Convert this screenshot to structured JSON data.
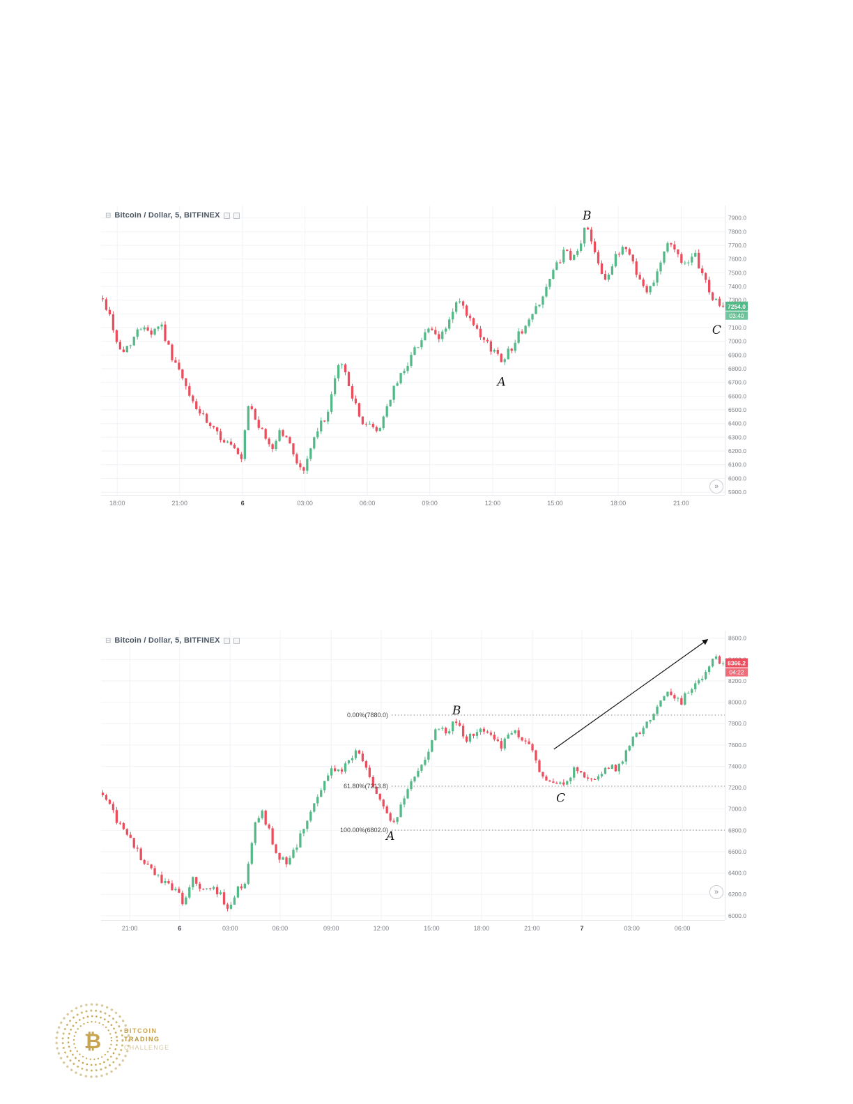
{
  "ui": {
    "collapse_glyph": "⊟",
    "scroll_glyph": "»"
  },
  "colors": {
    "up": "#53b987",
    "down": "#eb4d5c",
    "grid": "#f0f2f5",
    "axis_border": "#e4e6ea",
    "axis_text": "#7d8086",
    "title_text": "#4a5562",
    "fib_line": "#8a8a8a",
    "fib_text": "#3f3f3f",
    "annotation": "#161616",
    "arrow": "#111111",
    "logo_gold": "#c8a551",
    "logo_gold_light": "#d9c99b"
  },
  "chart_data": [
    {
      "type": "candlestick",
      "title": "Bitcoin / Dollar, 5, BITFINEX",
      "last_price": "7254.0",
      "last_value": 7254,
      "countdown": "03:40",
      "direction": "up",
      "price_axis": {
        "min": 5880,
        "max": 7990,
        "ticks": [
          7900,
          7800,
          7700,
          7600,
          7500,
          7400,
          7300,
          7200,
          7100,
          7000,
          6900,
          6800,
          6700,
          6600,
          6500,
          6400,
          6300,
          6200,
          6100,
          6000,
          5900
        ]
      },
      "time_axis": [
        {
          "t": 0.026,
          "label": "18:00"
        },
        {
          "t": 0.126,
          "label": "21:00"
        },
        {
          "t": 0.227,
          "label": "6",
          "bold": true
        },
        {
          "t": 0.327,
          "label": "03:00"
        },
        {
          "t": 0.427,
          "label": "06:00"
        },
        {
          "t": 0.527,
          "label": "09:00"
        },
        {
          "t": 0.628,
          "label": "12:00"
        },
        {
          "t": 0.728,
          "label": "15:00"
        },
        {
          "t": 0.829,
          "label": "18:00"
        },
        {
          "t": 0.93,
          "label": "21:00"
        }
      ],
      "anchors": [
        [
          0.0,
          7310
        ],
        [
          0.012,
          7180
        ],
        [
          0.02,
          7040
        ],
        [
          0.03,
          6900
        ],
        [
          0.045,
          7000
        ],
        [
          0.06,
          7090
        ],
        [
          0.067,
          7130
        ],
        [
          0.078,
          7060
        ],
        [
          0.093,
          7140
        ],
        [
          0.106,
          6950
        ],
        [
          0.123,
          6780
        ],
        [
          0.137,
          6620
        ],
        [
          0.153,
          6500
        ],
        [
          0.171,
          6380
        ],
        [
          0.19,
          6300
        ],
        [
          0.209,
          6230
        ],
        [
          0.223,
          6110
        ],
        [
          0.235,
          6540
        ],
        [
          0.246,
          6440
        ],
        [
          0.26,
          6300
        ],
        [
          0.274,
          6220
        ],
        [
          0.285,
          6350
        ],
        [
          0.298,
          6280
        ],
        [
          0.309,
          6170
        ],
        [
          0.322,
          6030
        ],
        [
          0.335,
          6220
        ],
        [
          0.352,
          6400
        ],
        [
          0.365,
          6500
        ],
        [
          0.381,
          6860
        ],
        [
          0.39,
          6780
        ],
        [
          0.397,
          6690
        ],
        [
          0.413,
          6440
        ],
        [
          0.43,
          6380
        ],
        [
          0.444,
          6340
        ],
        [
          0.464,
          6600
        ],
        [
          0.486,
          6800
        ],
        [
          0.508,
          6980
        ],
        [
          0.525,
          7100
        ],
        [
          0.54,
          7000
        ],
        [
          0.555,
          7120
        ],
        [
          0.573,
          7300
        ],
        [
          0.592,
          7150
        ],
        [
          0.609,
          7020
        ],
        [
          0.626,
          6950
        ],
        [
          0.644,
          6870
        ],
        [
          0.658,
          6950
        ],
        [
          0.672,
          7060
        ],
        [
          0.688,
          7150
        ],
        [
          0.7,
          7260
        ],
        [
          0.716,
          7400
        ],
        [
          0.732,
          7560
        ],
        [
          0.745,
          7660
        ],
        [
          0.754,
          7590
        ],
        [
          0.764,
          7630
        ],
        [
          0.779,
          7850
        ],
        [
          0.79,
          7710
        ],
        [
          0.806,
          7490
        ],
        [
          0.813,
          7460
        ],
        [
          0.828,
          7620
        ],
        [
          0.839,
          7700
        ],
        [
          0.851,
          7630
        ],
        [
          0.866,
          7440
        ],
        [
          0.878,
          7350
        ],
        [
          0.894,
          7520
        ],
        [
          0.91,
          7720
        ],
        [
          0.927,
          7640
        ],
        [
          0.942,
          7540
        ],
        [
          0.955,
          7620
        ],
        [
          0.969,
          7470
        ],
        [
          0.98,
          7330
        ],
        [
          1.0,
          7254
        ]
      ],
      "annotations": [
        {
          "text": "B",
          "t": 0.779,
          "price": 7915
        },
        {
          "text": "A",
          "t": 0.642,
          "price": 6700
        },
        {
          "text": "C",
          "t": 0.987,
          "price": 7080
        }
      ]
    },
    {
      "type": "candlestick",
      "title": "Bitcoin / Dollar, 5, BITFINEX",
      "last_price": "8366.2",
      "last_value": 8366,
      "countdown": "04:22",
      "direction": "down",
      "price_axis": {
        "min": 5960,
        "max": 8670,
        "ticks": [
          8600,
          8400,
          8200,
          8000,
          7800,
          7600,
          7400,
          7200,
          7000,
          6800,
          6600,
          6400,
          6200,
          6000
        ]
      },
      "time_axis": [
        {
          "t": 0.046,
          "label": "21:00"
        },
        {
          "t": 0.126,
          "label": "6",
          "bold": true
        },
        {
          "t": 0.207,
          "label": "03:00"
        },
        {
          "t": 0.287,
          "label": "06:00"
        },
        {
          "t": 0.369,
          "label": "09:00"
        },
        {
          "t": 0.449,
          "label": "12:00"
        },
        {
          "t": 0.53,
          "label": "15:00"
        },
        {
          "t": 0.61,
          "label": "18:00"
        },
        {
          "t": 0.691,
          "label": "21:00"
        },
        {
          "t": 0.771,
          "label": "7",
          "bold": true
        },
        {
          "t": 0.851,
          "label": "03:00"
        },
        {
          "t": 0.932,
          "label": "06:00"
        }
      ],
      "anchors": [
        [
          0.0,
          7150
        ],
        [
          0.01,
          7060
        ],
        [
          0.019,
          6940
        ],
        [
          0.034,
          6790
        ],
        [
          0.05,
          6650
        ],
        [
          0.067,
          6500
        ],
        [
          0.084,
          6400
        ],
        [
          0.101,
          6300
        ],
        [
          0.117,
          6240
        ],
        [
          0.131,
          6100
        ],
        [
          0.145,
          6330
        ],
        [
          0.16,
          6270
        ],
        [
          0.173,
          6250
        ],
        [
          0.187,
          6220
        ],
        [
          0.201,
          6060
        ],
        [
          0.216,
          6240
        ],
        [
          0.231,
          6340
        ],
        [
          0.246,
          6900
        ],
        [
          0.257,
          6950
        ],
        [
          0.268,
          6800
        ],
        [
          0.279,
          6600
        ],
        [
          0.294,
          6500
        ],
        [
          0.305,
          6550
        ],
        [
          0.316,
          6700
        ],
        [
          0.33,
          6900
        ],
        [
          0.343,
          7050
        ],
        [
          0.358,
          7250
        ],
        [
          0.372,
          7400
        ],
        [
          0.385,
          7340
        ],
        [
          0.399,
          7500
        ],
        [
          0.41,
          7540
        ],
        [
          0.421,
          7400
        ],
        [
          0.432,
          7290
        ],
        [
          0.447,
          7090
        ],
        [
          0.458,
          6950
        ],
        [
          0.466,
          6820
        ],
        [
          0.48,
          7010
        ],
        [
          0.495,
          7200
        ],
        [
          0.508,
          7350
        ],
        [
          0.522,
          7520
        ],
        [
          0.533,
          7700
        ],
        [
          0.544,
          7750
        ],
        [
          0.555,
          7690
        ],
        [
          0.566,
          7860
        ],
        [
          0.575,
          7750
        ],
        [
          0.587,
          7660
        ],
        [
          0.598,
          7710
        ],
        [
          0.609,
          7750
        ],
        [
          0.62,
          7710
        ],
        [
          0.631,
          7650
        ],
        [
          0.642,
          7600
        ],
        [
          0.654,
          7680
        ],
        [
          0.667,
          7720
        ],
        [
          0.678,
          7640
        ],
        [
          0.689,
          7590
        ],
        [
          0.701,
          7400
        ],
        [
          0.712,
          7300
        ],
        [
          0.723,
          7250
        ],
        [
          0.737,
          7210
        ],
        [
          0.752,
          7310
        ],
        [
          0.763,
          7400
        ],
        [
          0.774,
          7340
        ],
        [
          0.786,
          7300
        ],
        [
          0.797,
          7280
        ],
        [
          0.808,
          7350
        ],
        [
          0.819,
          7410
        ],
        [
          0.83,
          7380
        ],
        [
          0.841,
          7500
        ],
        [
          0.853,
          7650
        ],
        [
          0.864,
          7700
        ],
        [
          0.875,
          7790
        ],
        [
          0.886,
          7890
        ],
        [
          0.897,
          7990
        ],
        [
          0.908,
          8090
        ],
        [
          0.92,
          8040
        ],
        [
          0.931,
          7990
        ],
        [
          0.942,
          8090
        ],
        [
          0.953,
          8150
        ],
        [
          0.964,
          8200
        ],
        [
          0.975,
          8300
        ],
        [
          0.986,
          8430
        ],
        [
          1.0,
          8366
        ]
      ],
      "fib_start_t": 0.466,
      "fib_levels": [
        {
          "label": "0.00%(7880.0)",
          "price": 7880
        },
        {
          "label": "61.80%(7213.8)",
          "price": 7213.8
        },
        {
          "label": "100.00%(6802.0)",
          "price": 6802
        }
      ],
      "annotations": [
        {
          "text": "B",
          "t": 0.57,
          "price": 7920
        },
        {
          "text": "A",
          "t": 0.464,
          "price": 6745
        },
        {
          "text": "C",
          "t": 0.737,
          "price": 7100
        }
      ],
      "arrow": {
        "t1": 0.726,
        "p1": 7560,
        "t2": 0.972,
        "p2": 8585
      }
    }
  ],
  "logo": {
    "symbol": "₿",
    "lines": [
      "BITCOIN",
      "TRADING",
      "CHALLENGE"
    ]
  }
}
